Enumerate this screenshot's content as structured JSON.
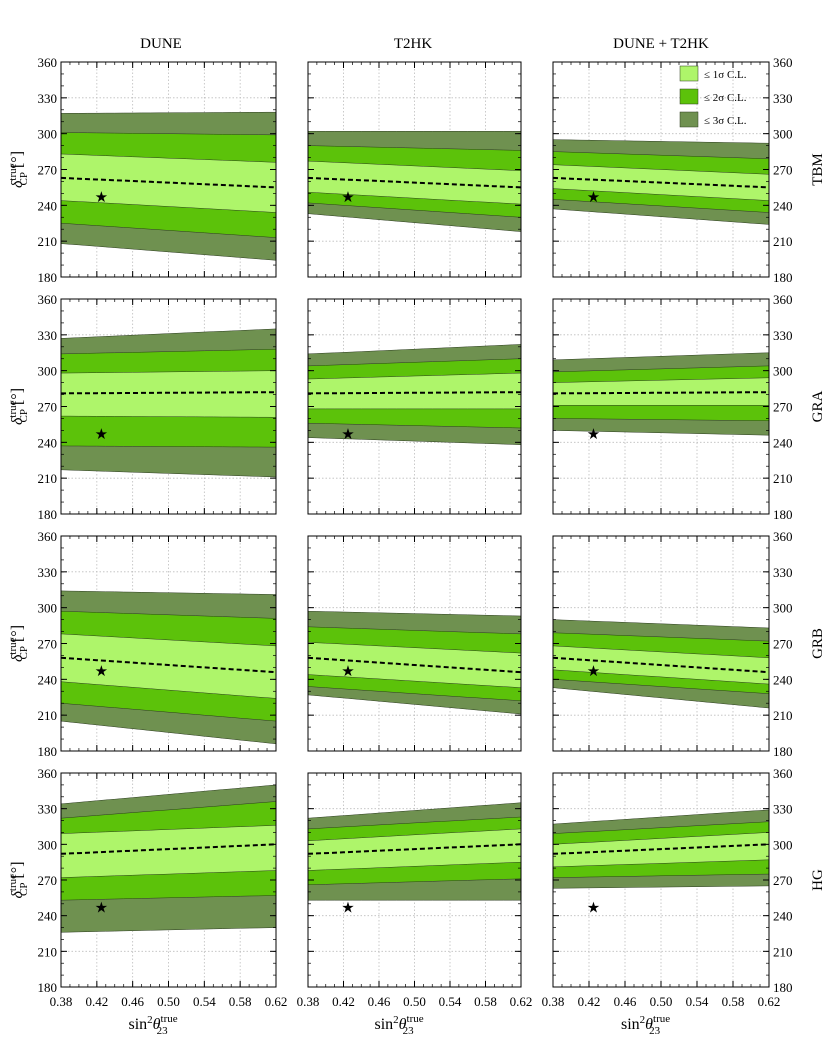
{
  "colors": {
    "band1": "#aef56a",
    "band2": "#5cc20a",
    "band3": "#6f9150",
    "grid": "#bdbdbd",
    "axis": "#000000",
    "central": "#000000"
  },
  "columns": [
    "DUNE",
    "T2HK",
    "DUNE + T2HK"
  ],
  "rows": [
    "TBM",
    "GRA",
    "GRB",
    "HG"
  ],
  "legend": [
    {
      "key": "band1",
      "label": "≤ 1σ C.L."
    },
    {
      "key": "band2",
      "label": "≤ 2σ C.L."
    },
    {
      "key": "band3",
      "label": "≤ 3σ C.L."
    }
  ],
  "axes": {
    "x_label_main": "sin",
    "x_label_sup1": "2",
    "x_label_theta": "θ",
    "x_label_sup2": "true",
    "x_label_sub": "23",
    "y_label_main": "δ",
    "y_label_sup": "true",
    "y_label_sub": "CP",
    "y_label_unit": "[°]",
    "xlim": [
      0.38,
      0.62
    ],
    "ylim": [
      180,
      360
    ],
    "x_ticks": [
      "0.38",
      "0.42",
      "0.46",
      "0.50",
      "0.54",
      "0.58",
      "0.62"
    ],
    "y_ticks": [
      "180",
      "210",
      "240",
      "270",
      "300",
      "330",
      "360"
    ],
    "grid": "dotted"
  },
  "chart_data": {
    "type": "area",
    "x_range": [
      0.38,
      0.62
    ],
    "star": {
      "x": 0.425,
      "y": 247
    },
    "panels": [
      {
        "row": "TBM",
        "column": "DUNE",
        "central": [
          263,
          255
        ],
        "sigma1": {
          "lo": [
            244,
            234
          ],
          "hi": [
            283,
            276
          ]
        },
        "sigma2": {
          "lo": [
            225,
            213
          ],
          "hi": [
            301,
            299
          ]
        },
        "sigma3": {
          "lo": [
            208,
            194
          ],
          "hi": [
            317,
            318
          ]
        }
      },
      {
        "row": "TBM",
        "column": "T2HK",
        "central": [
          263,
          255
        ],
        "sigma1": {
          "lo": [
            251,
            241
          ],
          "hi": [
            277,
            269
          ]
        },
        "sigma2": {
          "lo": [
            242,
            230
          ],
          "hi": [
            290,
            286
          ]
        },
        "sigma3": {
          "lo": [
            233,
            218
          ],
          "hi": [
            302,
            302
          ]
        }
      },
      {
        "row": "TBM",
        "column": "DUNE + T2HK",
        "central": [
          263,
          255
        ],
        "sigma1": {
          "lo": [
            254,
            244
          ],
          "hi": [
            274,
            266
          ]
        },
        "sigma2": {
          "lo": [
            245,
            234
          ],
          "hi": [
            285,
            279
          ]
        },
        "sigma3": {
          "lo": [
            237,
            224
          ],
          "hi": [
            295,
            292
          ]
        }
      },
      {
        "row": "GRA",
        "column": "DUNE",
        "central": [
          281,
          282
        ],
        "sigma1": {
          "lo": [
            262,
            261
          ],
          "hi": [
            298,
            300
          ]
        },
        "sigma2": {
          "lo": [
            237,
            236
          ],
          "hi": [
            314,
            318
          ]
        },
        "sigma3": {
          "lo": [
            217,
            211
          ],
          "hi": [
            327,
            335
          ]
        }
      },
      {
        "row": "GRA",
        "column": "T2HK",
        "central": [
          281,
          282
        ],
        "sigma1": {
          "lo": [
            268,
            268
          ],
          "hi": [
            293,
            298
          ]
        },
        "sigma2": {
          "lo": [
            256,
            252
          ],
          "hi": [
            304,
            310
          ]
        },
        "sigma3": {
          "lo": [
            244,
            238
          ],
          "hi": [
            314,
            322
          ]
        }
      },
      {
        "row": "GRA",
        "column": "DUNE + T2HK",
        "central": [
          281,
          282
        ],
        "sigma1": {
          "lo": [
            271,
            271
          ],
          "hi": [
            290,
            294
          ]
        },
        "sigma2": {
          "lo": [
            260,
            258
          ],
          "hi": [
            299,
            304
          ]
        },
        "sigma3": {
          "lo": [
            250,
            246
          ],
          "hi": [
            309,
            315
          ]
        }
      },
      {
        "row": "GRB",
        "column": "DUNE",
        "central": [
          258,
          246
        ],
        "sigma1": {
          "lo": [
            238,
            224
          ],
          "hi": [
            278,
            268
          ]
        },
        "sigma2": {
          "lo": [
            220,
            205
          ],
          "hi": [
            297,
            291
          ]
        },
        "sigma3": {
          "lo": [
            205,
            186
          ],
          "hi": [
            314,
            311
          ]
        }
      },
      {
        "row": "GRB",
        "column": "T2HK",
        "central": [
          258,
          246
        ],
        "sigma1": {
          "lo": [
            244,
            233
          ],
          "hi": [
            271,
            262
          ]
        },
        "sigma2": {
          "lo": [
            234,
            222
          ],
          "hi": [
            284,
            278
          ]
        },
        "sigma3": {
          "lo": [
            227,
            211
          ],
          "hi": [
            297,
            293
          ]
        }
      },
      {
        "row": "GRB",
        "column": "DUNE + T2HK",
        "central": [
          258,
          246
        ],
        "sigma1": {
          "lo": [
            248,
            236
          ],
          "hi": [
            268,
            258
          ]
        },
        "sigma2": {
          "lo": [
            240,
            228
          ],
          "hi": [
            279,
            272
          ]
        },
        "sigma3": {
          "lo": [
            233,
            216
          ],
          "hi": [
            290,
            283
          ]
        }
      },
      {
        "row": "HG",
        "column": "DUNE",
        "central": [
          292,
          300
        ],
        "sigma1": {
          "lo": [
            272,
            278
          ],
          "hi": [
            309,
            316
          ]
        },
        "sigma2": {
          "lo": [
            253,
            257
          ],
          "hi": [
            322,
            336
          ]
        },
        "sigma3": {
          "lo": [
            226,
            230
          ],
          "hi": [
            334,
            350
          ]
        }
      },
      {
        "row": "HG",
        "column": "T2HK",
        "central": [
          292,
          300
        ],
        "sigma1": {
          "lo": [
            278,
            285
          ],
          "hi": [
            303,
            313
          ]
        },
        "sigma2": {
          "lo": [
            266,
            271
          ],
          "hi": [
            313,
            323
          ]
        },
        "sigma3": {
          "lo": [
            253,
            253
          ],
          "hi": [
            322,
            335
          ]
        }
      },
      {
        "row": "HG",
        "column": "DUNE + T2HK",
        "central": [
          292,
          300
        ],
        "sigma1": {
          "lo": [
            281,
            287
          ],
          "hi": [
            300,
            310
          ]
        },
        "sigma2": {
          "lo": [
            272,
            275
          ],
          "hi": [
            309,
            319
          ]
        },
        "sigma3": {
          "lo": [
            263,
            265
          ],
          "hi": [
            317,
            329
          ]
        }
      }
    ]
  }
}
